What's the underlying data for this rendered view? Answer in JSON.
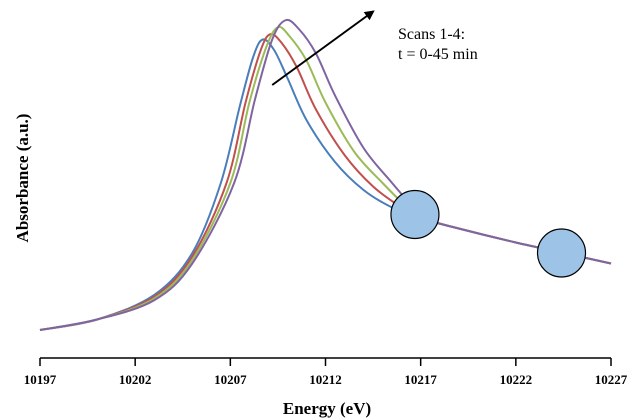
{
  "chart_data": {
    "type": "line",
    "xlabel": "Energy (eV)",
    "ylabel": "Absorbance (a.u.)",
    "xlim": [
      10197,
      10227
    ],
    "ylim": [
      0,
      1
    ],
    "x_ticks": [
      10197,
      10202,
      10207,
      10212,
      10217,
      10222,
      10227
    ],
    "y_ticks_labeled": false,
    "grid": false,
    "legend": "none",
    "series": [
      {
        "color": "#4a7ebb",
        "points": [
          [
            10197,
            0.08
          ],
          [
            10200,
            0.11
          ],
          [
            10203,
            0.18
          ],
          [
            10205,
            0.3
          ],
          [
            10206.5,
            0.5
          ],
          [
            10207.5,
            0.72
          ],
          [
            10208.2,
            0.86
          ],
          [
            10208.7,
            0.91
          ],
          [
            10209.3,
            0.88
          ],
          [
            10210,
            0.8
          ],
          [
            10211,
            0.68
          ],
          [
            10212.5,
            0.56
          ],
          [
            10214,
            0.48
          ],
          [
            10215.5,
            0.43
          ],
          [
            10217,
            0.4
          ],
          [
            10219,
            0.37
          ],
          [
            10222,
            0.33
          ],
          [
            10224.5,
            0.3
          ],
          [
            10227,
            0.27
          ]
        ]
      },
      {
        "color": "#c0504d",
        "points": [
          [
            10197,
            0.08
          ],
          [
            10200,
            0.11
          ],
          [
            10203,
            0.175
          ],
          [
            10205,
            0.29
          ],
          [
            10206.8,
            0.5
          ],
          [
            10207.8,
            0.73
          ],
          [
            10208.6,
            0.88
          ],
          [
            10209.1,
            0.925
          ],
          [
            10209.7,
            0.9
          ],
          [
            10210.5,
            0.83
          ],
          [
            10211.5,
            0.71
          ],
          [
            10213,
            0.58
          ],
          [
            10214.5,
            0.49
          ],
          [
            10216,
            0.43
          ],
          [
            10217,
            0.4
          ],
          [
            10219,
            0.37
          ],
          [
            10222,
            0.33
          ],
          [
            10224.5,
            0.3
          ],
          [
            10227,
            0.27
          ]
        ]
      },
      {
        "color": "#9bbb59",
        "points": [
          [
            10197,
            0.08
          ],
          [
            10200,
            0.11
          ],
          [
            10203,
            0.17
          ],
          [
            10205,
            0.28
          ],
          [
            10207,
            0.5
          ],
          [
            10208,
            0.73
          ],
          [
            10208.9,
            0.89
          ],
          [
            10209.5,
            0.945
          ],
          [
            10210.1,
            0.92
          ],
          [
            10211,
            0.85
          ],
          [
            10212,
            0.73
          ],
          [
            10213.5,
            0.59
          ],
          [
            10215,
            0.5
          ],
          [
            10216.3,
            0.43
          ],
          [
            10217,
            0.4
          ],
          [
            10219,
            0.37
          ],
          [
            10222,
            0.33
          ],
          [
            10224.5,
            0.3
          ],
          [
            10227,
            0.27
          ]
        ]
      },
      {
        "color": "#8064a2",
        "points": [
          [
            10197,
            0.08
          ],
          [
            10200,
            0.11
          ],
          [
            10203,
            0.165
          ],
          [
            10205,
            0.27
          ],
          [
            10207.2,
            0.5
          ],
          [
            10208.3,
            0.74
          ],
          [
            10209.2,
            0.91
          ],
          [
            10209.9,
            0.965
          ],
          [
            10210.6,
            0.94
          ],
          [
            10211.5,
            0.87
          ],
          [
            10212.5,
            0.75
          ],
          [
            10214,
            0.6
          ],
          [
            10215.5,
            0.5
          ],
          [
            10216.6,
            0.43
          ],
          [
            10217,
            0.4
          ],
          [
            10219,
            0.37
          ],
          [
            10222,
            0.33
          ],
          [
            10224.5,
            0.3
          ],
          [
            10227,
            0.27
          ]
        ]
      }
    ],
    "annotation": {
      "line1": "Scans  1-4:",
      "line2": "t = 0-45 min",
      "arrow_from": [
        10209.2,
        0.78
      ],
      "arrow_to": [
        10214.5,
        0.99
      ]
    },
    "isosbestic_points": [
      {
        "x": 10216.7,
        "y": 0.41,
        "fill": "#9dc3e6",
        "stroke": "#000000"
      },
      {
        "x": 10224.4,
        "y": 0.3,
        "fill": "#9dc3e6",
        "stroke": "#000000"
      }
    ]
  }
}
